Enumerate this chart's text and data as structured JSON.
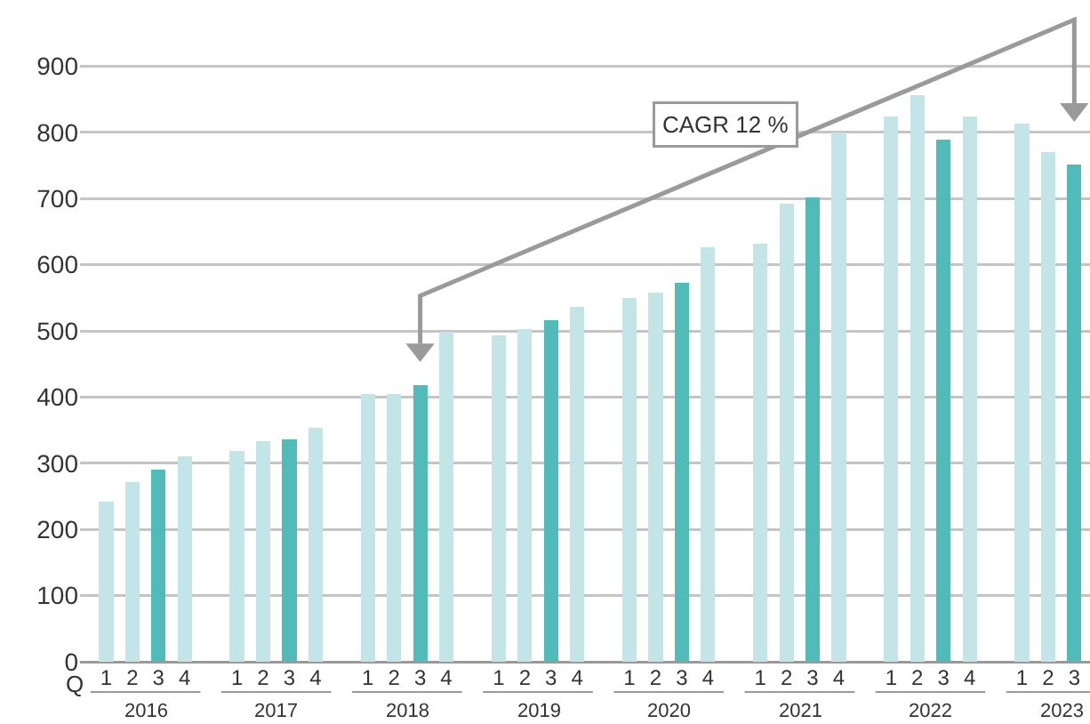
{
  "chart_data": {
    "type": "bar",
    "categories": [
      "1",
      "2",
      "3",
      "4",
      "1",
      "2",
      "3",
      "4",
      "1",
      "2",
      "3",
      "4",
      "1",
      "2",
      "3",
      "4",
      "1",
      "2",
      "3",
      "4",
      "1",
      "2",
      "3",
      "4",
      "1",
      "2",
      "3",
      "4",
      "1",
      "2",
      "3"
    ],
    "values": [
      242,
      272,
      291,
      310,
      318,
      334,
      336,
      353,
      404,
      404,
      418,
      498,
      493,
      503,
      516,
      536,
      550,
      558,
      572,
      626,
      632,
      692,
      702,
      800,
      824,
      856,
      789,
      824,
      813,
      770,
      751
    ],
    "colors": [
      "#c3e5e7",
      "#c3e5e7",
      "#50bbb8",
      "#c3e5e7",
      "#c3e5e7",
      "#c3e5e7",
      "#50bbb8",
      "#c3e5e7",
      "#c3e5e7",
      "#c3e5e7",
      "#50bbb8",
      "#c3e5e7",
      "#c3e5e7",
      "#c3e5e7",
      "#50bbb8",
      "#c3e5e7",
      "#c3e5e7",
      "#c3e5e7",
      "#50bbb8",
      "#c3e5e7",
      "#c3e5e7",
      "#c3e5e7",
      "#50bbb8",
      "#c3e5e7",
      "#c3e5e7",
      "#c3e5e7",
      "#50bbb8",
      "#c3e5e7",
      "#c3e5e7",
      "#c3e5e7",
      "#50bbb8"
    ],
    "ylim": [
      0,
      1000
    ],
    "yticks": [
      0,
      100,
      200,
      300,
      400,
      500,
      600,
      700,
      800,
      900
    ],
    "grid": "y",
    "annotations": [
      "Q",
      "2016",
      "2017",
      "2018",
      "2019",
      "2020",
      "2021",
      "2022",
      "2023",
      "CAGR 12 %"
    ]
  }
}
